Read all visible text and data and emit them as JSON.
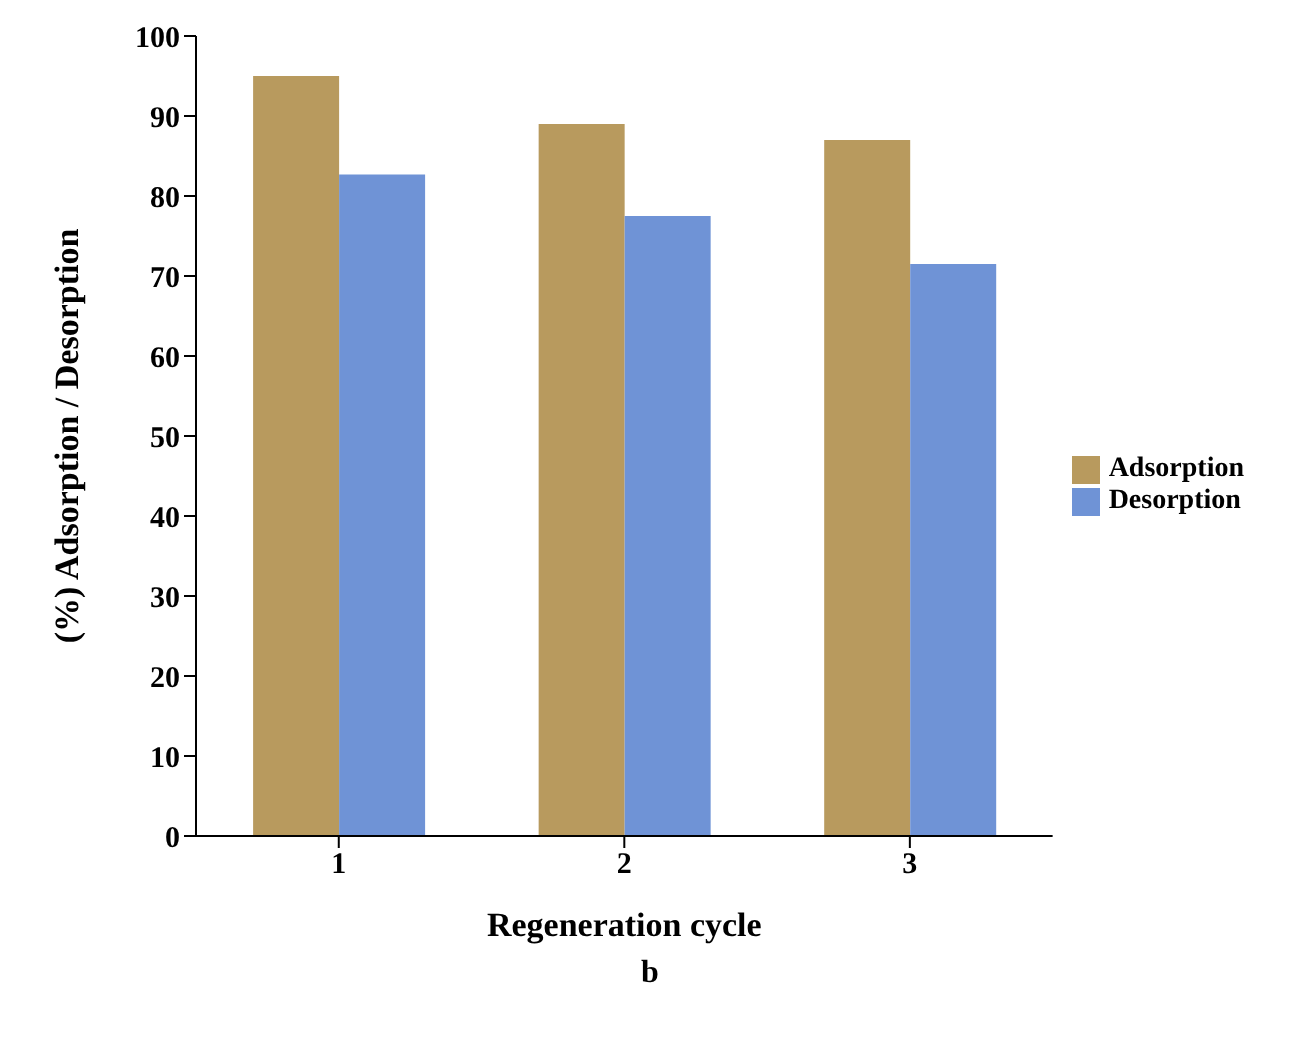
{
  "chart_data": {
    "type": "bar",
    "categories": [
      "1",
      "2",
      "3"
    ],
    "series": [
      {
        "name": "Adsorption",
        "color": "#b89a5e",
        "values": [
          95,
          89,
          87
        ]
      },
      {
        "name": "Desorption",
        "color": "#6f93d6",
        "values": [
          82.7,
          77.5,
          71.5
        ]
      }
    ],
    "xlabel": "Regeneration cycle",
    "ylabel": "(%) Adsorption / Desorption",
    "ylim": [
      0,
      100
    ],
    "yticks": [
      0,
      10,
      20,
      30,
      40,
      50,
      60,
      70,
      80,
      90,
      100
    ],
    "grid": false,
    "legend": "right",
    "annotations": [
      "b"
    ]
  }
}
